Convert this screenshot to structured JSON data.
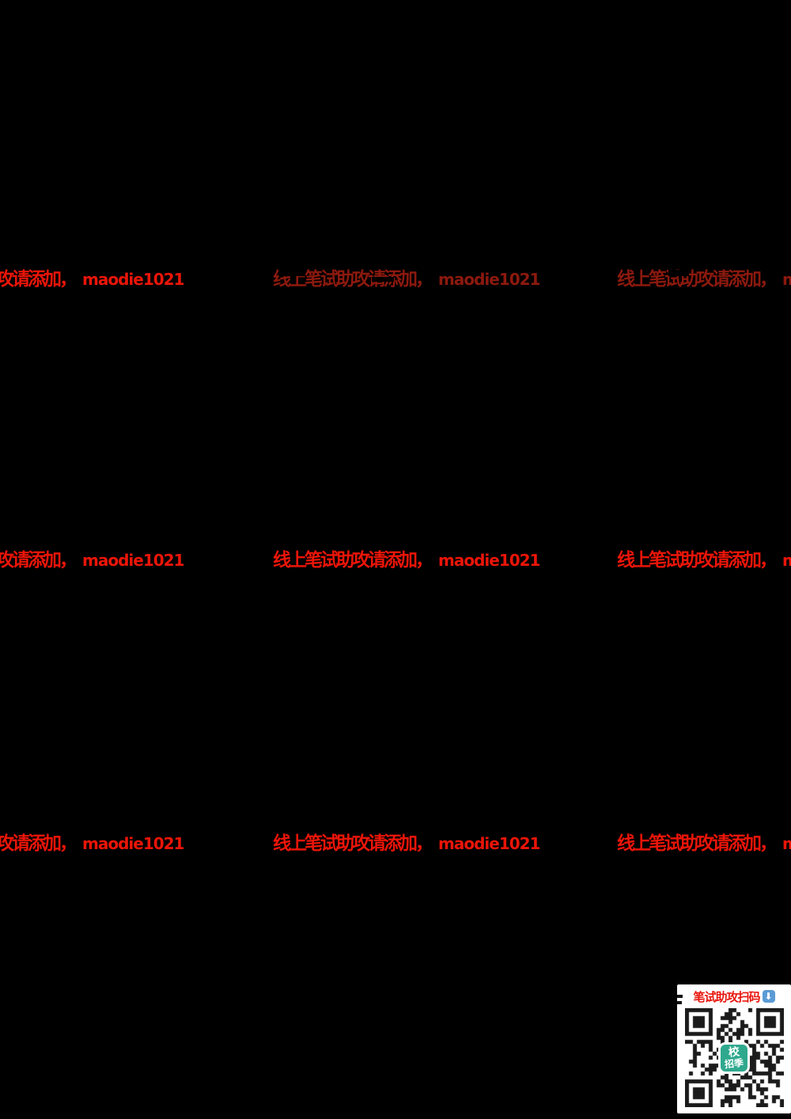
{
  "page": {
    "background_color": "#000000"
  },
  "watermark": {
    "text_cn": "线上笔试助攻请添加，",
    "handle": "maodie1021",
    "color_bright": "#ea1508",
    "color_dim": "#8c190e"
  },
  "qr_panel": {
    "title": "笔试助攻扫码",
    "title_color": "#e8150c",
    "download_icon": "download-arrow-icon",
    "download_icon_color": "#5b9bd5",
    "download_icon_glyph": "⬇",
    "panel_background": "#ffffff",
    "qr_dark_color": "#1b1b1b",
    "qr_light_color": "#ffffff",
    "center_logo": {
      "line1": "校",
      "line2": "招季",
      "background_color": "#2fa98e",
      "text_color": "#ffffff"
    }
  }
}
